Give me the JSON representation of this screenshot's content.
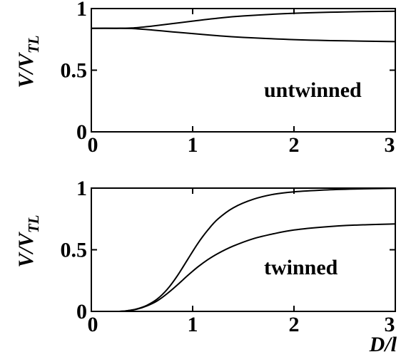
{
  "chart_data": [
    {
      "type": "line",
      "ylabel": {
        "main": "V/V",
        "sub": "TL"
      },
      "annotation": "untwinned",
      "xlim": [
        0,
        3
      ],
      "ylim": [
        0,
        1
      ],
      "xticks": [
        {
          "value": 0,
          "label": "0"
        },
        {
          "value": 1,
          "label": "1"
        },
        {
          "value": 2,
          "label": "2"
        },
        {
          "value": 3,
          "label": "3"
        }
      ],
      "yticks": [
        {
          "value": 0,
          "label": "0"
        },
        {
          "value": 0.5,
          "label": "0.5"
        },
        {
          "value": 1,
          "label": "1"
        }
      ],
      "series": [
        {
          "x": [
            0,
            0.25,
            0.4,
            0.6,
            0.8,
            1.0,
            1.25,
            1.5,
            2.0,
            2.5,
            3.0
          ],
          "y": [
            0.84,
            0.84,
            0.842,
            0.858,
            0.878,
            0.898,
            0.922,
            0.94,
            0.962,
            0.973,
            0.978
          ]
        },
        {
          "x": [
            0,
            0.25,
            0.4,
            0.6,
            0.8,
            1.0,
            1.25,
            1.5,
            2.0,
            2.5,
            3.0
          ],
          "y": [
            0.84,
            0.84,
            0.838,
            0.826,
            0.811,
            0.797,
            0.78,
            0.766,
            0.748,
            0.738,
            0.732
          ]
        }
      ]
    },
    {
      "type": "line",
      "ylabel": {
        "main": "V/V",
        "sub": "TL"
      },
      "annotation": "twinned",
      "xlabel": "D/l",
      "xlim": [
        0,
        3
      ],
      "ylim": [
        0,
        1
      ],
      "xticks": [
        {
          "value": 0,
          "label": "0"
        },
        {
          "value": 1,
          "label": "1"
        },
        {
          "value": 2,
          "label": "2"
        },
        {
          "value": 3,
          "label": "3"
        }
      ],
      "yticks": [
        {
          "value": 0,
          "label": "0"
        },
        {
          "value": 0.5,
          "label": "0.5"
        },
        {
          "value": 1,
          "label": "1"
        }
      ],
      "series": [
        {
          "x": [
            0,
            0.25,
            0.35,
            0.45,
            0.55,
            0.65,
            0.75,
            0.85,
            0.95,
            1.05,
            1.15,
            1.25,
            1.4,
            1.6,
            1.8,
            2.0,
            2.3,
            2.6,
            3.0
          ],
          "y": [
            0,
            0,
            0.005,
            0.02,
            0.05,
            0.1,
            0.18,
            0.29,
            0.42,
            0.55,
            0.66,
            0.75,
            0.84,
            0.91,
            0.95,
            0.97,
            0.985,
            0.993,
            0.998
          ]
        },
        {
          "x": [
            0,
            0.25,
            0.35,
            0.45,
            0.55,
            0.65,
            0.75,
            0.85,
            0.95,
            1.05,
            1.15,
            1.25,
            1.4,
            1.6,
            1.8,
            2.0,
            2.3,
            2.6,
            3.0
          ],
          "y": [
            0,
            0,
            0.005,
            0.018,
            0.045,
            0.085,
            0.145,
            0.215,
            0.29,
            0.36,
            0.42,
            0.47,
            0.53,
            0.59,
            0.63,
            0.66,
            0.685,
            0.7,
            0.71
          ]
        }
      ]
    }
  ]
}
